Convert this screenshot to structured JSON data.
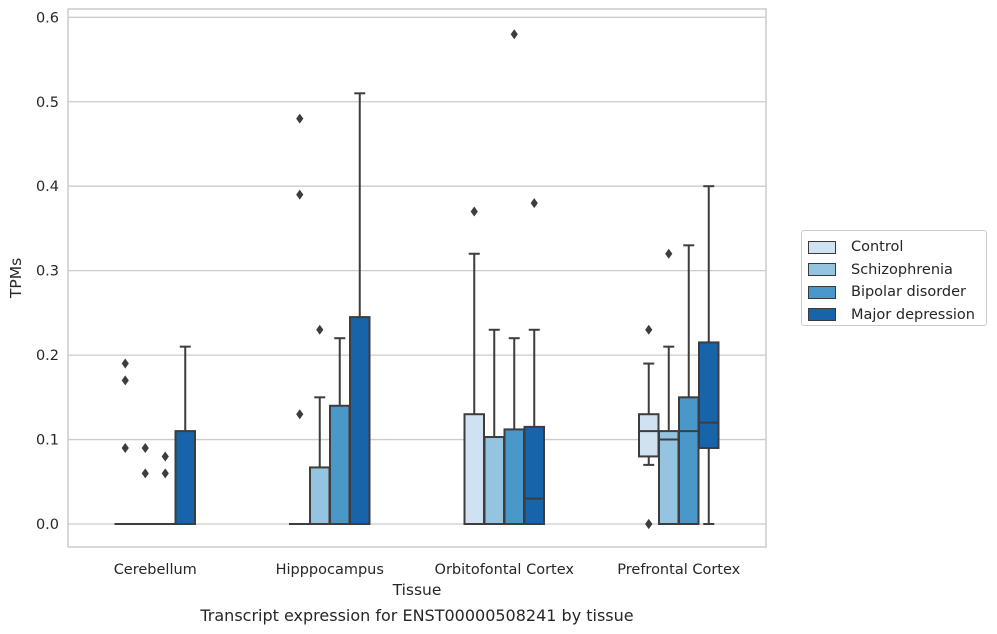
{
  "chart_data": {
    "type": "box",
    "xlabel": "Tissue",
    "ylabel": "TPMs",
    "caption": "Transcript expression for ENST00000508241 by tissue",
    "ylim": [
      -0.03,
      0.612
    ],
    "yticks": [
      "0.0",
      "0.1",
      "0.2",
      "0.3",
      "0.4",
      "0.5",
      "0.6"
    ],
    "grid": "horizontal",
    "legend_position": "right",
    "categories": [
      "Cerebellum",
      "Hipppocampus",
      "Orbitofontal Cortex",
      "Prefrontal Cortex"
    ],
    "series": [
      {
        "name": "Control",
        "color": "#d0e1f2",
        "boxes": [
          {
            "category": "Cerebellum",
            "q1": 0,
            "median": 0,
            "q3": 0,
            "whisker_low": 0,
            "whisker_high": 0,
            "outliers": [
              0.19,
              0.17,
              0.09
            ]
          },
          {
            "category": "Hipppocampus",
            "q1": 0,
            "median": 0,
            "q3": 0,
            "whisker_low": 0,
            "whisker_high": 0,
            "outliers": [
              0.48,
              0.39,
              0.13
            ]
          },
          {
            "category": "Orbitofontal Cortex",
            "q1": 0,
            "median": 0,
            "q3": 0.13,
            "whisker_low": 0,
            "whisker_high": 0.32,
            "outliers": [
              0.37
            ]
          },
          {
            "category": "Prefrontal Cortex",
            "q1": 0.08,
            "median": 0.11,
            "q3": 0.13,
            "whisker_low": 0.07,
            "whisker_high": 0.19,
            "outliers": [
              0.23,
              0.0,
              0.0
            ]
          }
        ]
      },
      {
        "name": "Schizophrenia",
        "color": "#94c4df",
        "boxes": [
          {
            "category": "Cerebellum",
            "q1": 0,
            "median": 0,
            "q3": 0,
            "whisker_low": 0,
            "whisker_high": 0,
            "outliers": [
              0.09,
              0.06
            ]
          },
          {
            "category": "Hipppocampus",
            "q1": 0,
            "median": 0,
            "q3": 0.067,
            "whisker_low": 0,
            "whisker_high": 0.15,
            "outliers": [
              0.23
            ]
          },
          {
            "category": "Orbitofontal Cortex",
            "q1": 0,
            "median": 0,
            "q3": 0.103,
            "whisker_low": 0,
            "whisker_high": 0.23,
            "outliers": []
          },
          {
            "category": "Prefrontal Cortex",
            "q1": 0,
            "median": 0.1,
            "q3": 0.11,
            "whisker_low": 0,
            "whisker_high": 0.21,
            "outliers": [
              0.32
            ]
          }
        ]
      },
      {
        "name": "Bipolar disorder",
        "color": "#4a98c9",
        "boxes": [
          {
            "category": "Cerebellum",
            "q1": 0,
            "median": 0,
            "q3": 0,
            "whisker_low": 0,
            "whisker_high": 0,
            "outliers": [
              0.08,
              0.06
            ]
          },
          {
            "category": "Hipppocampus",
            "q1": 0,
            "median": 0,
            "q3": 0.14,
            "whisker_low": 0,
            "whisker_high": 0.22,
            "outliers": []
          },
          {
            "category": "Orbitofontal Cortex",
            "q1": 0,
            "median": 0,
            "q3": 0.112,
            "whisker_low": 0,
            "whisker_high": 0.22,
            "outliers": [
              0.58
            ]
          },
          {
            "category": "Prefrontal Cortex",
            "q1": 0,
            "median": 0.11,
            "q3": 0.15,
            "whisker_low": 0,
            "whisker_high": 0.33,
            "outliers": []
          }
        ]
      },
      {
        "name": "Major depression",
        "color": "#1764ab",
        "boxes": [
          {
            "category": "Cerebellum",
            "q1": 0,
            "median": 0,
            "q3": 0.11,
            "whisker_low": 0,
            "whisker_high": 0.21,
            "outliers": []
          },
          {
            "category": "Hipppocampus",
            "q1": 0,
            "median": 0,
            "q3": 0.245,
            "whisker_low": 0,
            "whisker_high": 0.51,
            "outliers": []
          },
          {
            "category": "Orbitofontal Cortex",
            "q1": 0,
            "median": 0.03,
            "q3": 0.115,
            "whisker_low": 0,
            "whisker_high": 0.23,
            "outliers": [
              0.38
            ]
          },
          {
            "category": "Prefrontal Cortex",
            "q1": 0.09,
            "median": 0.12,
            "q3": 0.215,
            "whisker_low": 0,
            "whisker_high": 0.4,
            "outliers": []
          }
        ]
      }
    ]
  }
}
